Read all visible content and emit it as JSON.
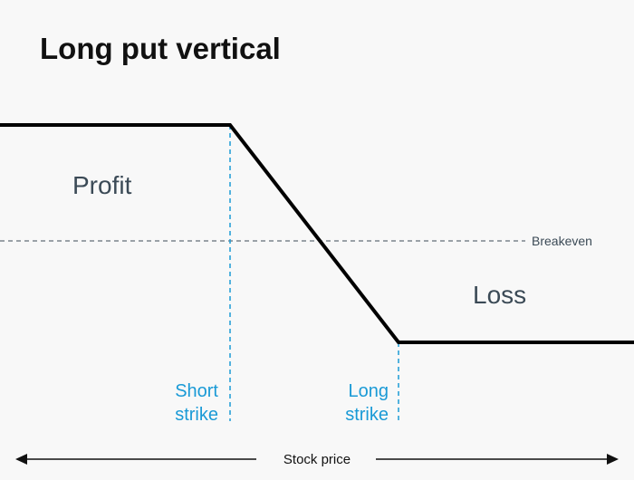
{
  "title": "Long put vertical",
  "labels": {
    "profit": "Profit",
    "loss": "Loss",
    "breakeven": "Breakeven",
    "short_strike_line1": "Short",
    "short_strike_line2": "strike",
    "long_strike_line1": "Long",
    "long_strike_line2": "strike",
    "axis": "Stock price"
  },
  "colors": {
    "background": "#f8f8f8",
    "title": "#111111",
    "payoff_line": "#000000",
    "region_label": "#3b4a56",
    "strike": "#1a9ad6",
    "breakeven_line": "#3b4a56",
    "axis": "#111111"
  }
}
